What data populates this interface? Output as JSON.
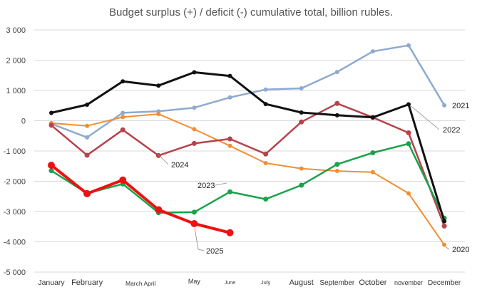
{
  "chart_data": {
    "type": "line",
    "title": "Budget surplus (+) / deficit (-) cumulative total, billion rubles.",
    "xlabel": "",
    "ylabel": "",
    "ylim": [
      -5000,
      3000
    ],
    "yticks": [
      3000,
      2000,
      1000,
      0,
      -1000,
      -2000,
      -3000,
      -4000,
      -5000
    ],
    "ytick_labels": [
      "3 000",
      "2 000",
      "1 000",
      "0",
      "-1 000",
      "-2 000",
      "-3 000",
      "-4 000",
      "-5 000"
    ],
    "grid": true,
    "x_labels": [
      {
        "text": "January",
        "index": 0
      },
      {
        "text": "February",
        "index": 1
      },
      {
        "text": "March April",
        "index": 2.5
      },
      {
        "text": "May",
        "index": 4
      },
      {
        "text": "June",
        "index": 5
      },
      {
        "text": "July",
        "index": 6
      },
      {
        "text": "August",
        "index": 7
      },
      {
        "text": "September",
        "index": 8
      },
      {
        "text": "October",
        "index": 9
      },
      {
        "text": "november",
        "index": 10
      },
      {
        "text": "December",
        "index": 11
      }
    ],
    "series": [
      {
        "name": "2021",
        "color": "#8eaad0",
        "width": 2.5,
        "marker_r": 3,
        "values": [
          -100,
          -550,
          260,
          310,
          430,
          770,
          1030,
          1070,
          1610,
          2290,
          2490,
          510
        ]
      },
      {
        "name": "2020",
        "color": "#f28e30",
        "width": 2,
        "marker_r": 3,
        "values": [
          -80,
          -170,
          120,
          220,
          -280,
          -830,
          -1400,
          -1580,
          -1660,
          -1700,
          -2400,
          -4100
        ]
      },
      {
        "name": "2024",
        "color": "#b5434a",
        "width": 2.5,
        "marker_r": 3.5,
        "values": [
          -150,
          -1140,
          -300,
          -1150,
          -750,
          -600,
          -1100,
          -40,
          570,
          110,
          -400,
          -3480
        ]
      },
      {
        "name": "2023",
        "color": "#1aa24a",
        "width": 2.5,
        "marker_r": 3.5,
        "values": [
          -1650,
          -2400,
          -2090,
          -3040,
          -3020,
          -2350,
          -2590,
          -2130,
          -1440,
          -1060,
          -760,
          -3220
        ]
      },
      {
        "name": "2022",
        "color": "#111111",
        "width": 3,
        "marker_r": 3,
        "values": [
          260,
          530,
          1300,
          1160,
          1600,
          1480,
          550,
          270,
          180,
          110,
          540,
          -3320
        ]
      },
      {
        "name": "2025",
        "color": "#ee1111",
        "width": 4,
        "marker_r": 5,
        "values": [
          -1470,
          -2410,
          -1960,
          -2940,
          -3400,
          -3700
        ]
      }
    ],
    "series_labels": [
      {
        "series": "2021",
        "text": "2021"
      },
      {
        "series": "2022",
        "text": "2022"
      },
      {
        "series": "2024",
        "text": "2024"
      },
      {
        "series": "2023",
        "text": "2023"
      },
      {
        "series": "2025",
        "text": "2025"
      },
      {
        "series": "2020",
        "text": "2020"
      }
    ]
  }
}
